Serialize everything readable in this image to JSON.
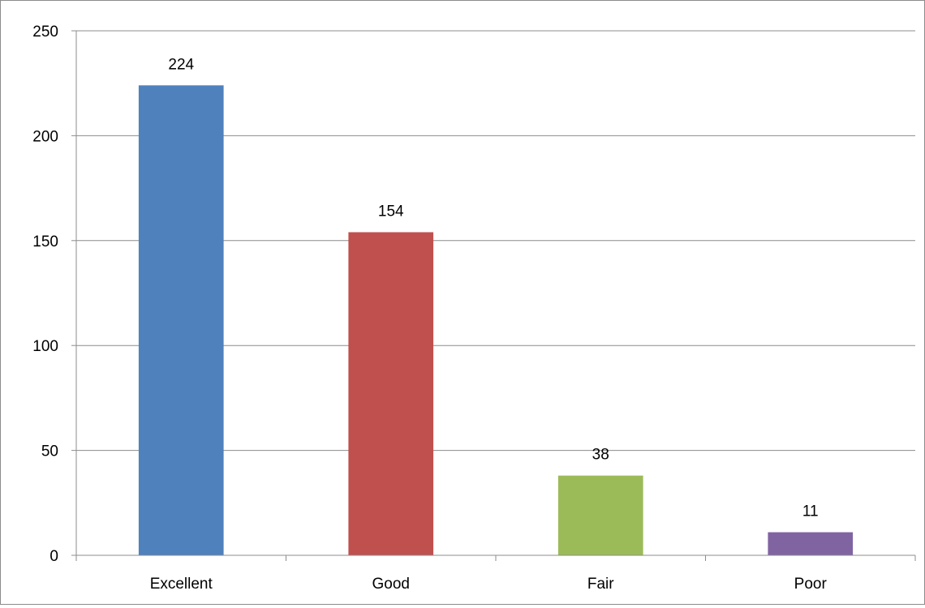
{
  "chart_data": {
    "type": "bar",
    "title": "",
    "xlabel": "",
    "ylabel": "",
    "categories": [
      "Excellent",
      "Good",
      "Fair",
      "Poor"
    ],
    "values": [
      224,
      154,
      38,
      11
    ],
    "data_labels": [
      "224",
      "154",
      "38",
      "11"
    ],
    "colors": [
      "#4f81bd",
      "#c0504d",
      "#9bbb59",
      "#8064a2"
    ],
    "ylim": [
      0,
      250
    ],
    "yticks": [
      0,
      50,
      100,
      150,
      200,
      250
    ],
    "ytick_labels": [
      "0",
      "50",
      "100",
      "150",
      "200",
      "250"
    ],
    "grid": true,
    "legend": "none"
  }
}
